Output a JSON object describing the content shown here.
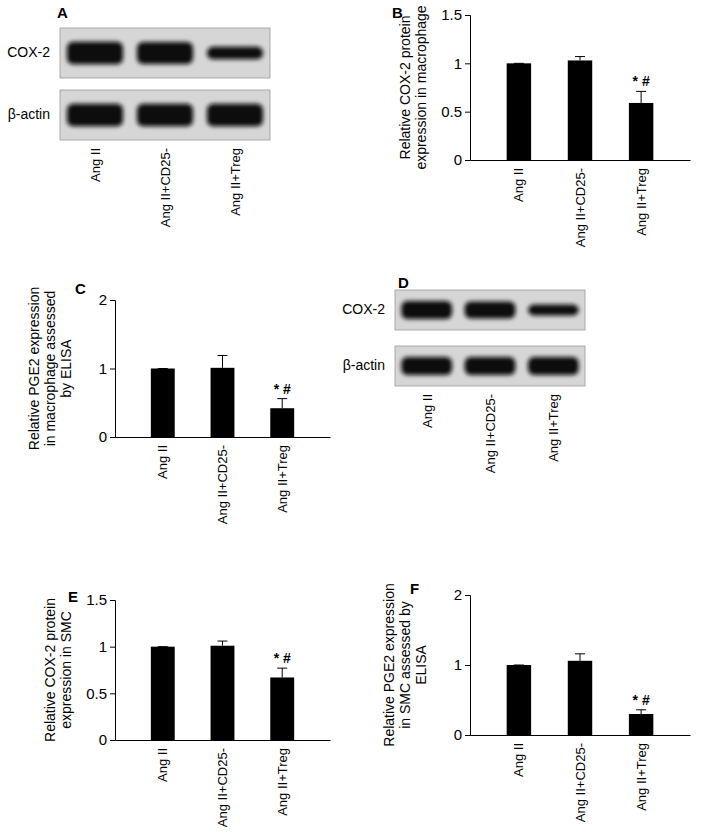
{
  "chart_data": [
    {
      "type": "blot",
      "title": "A",
      "rows": [
        "COX-2",
        "β-actin"
      ],
      "categories": [
        "Ang II",
        "Ang II+CD25-",
        "Ang II+Treg"
      ],
      "intensity": [
        [
          1,
          0.97,
          0.55
        ],
        [
          1,
          1,
          1
        ]
      ]
    },
    {
      "type": "bar",
      "title": "B",
      "ylabel": "Relative COX-2 protein expression in macrophage",
      "categories": [
        "Ang II",
        "Ang II+CD25-",
        "Ang II+Treg"
      ],
      "values": [
        1,
        1.03,
        0.59
      ],
      "errors": [
        0,
        0.04,
        0.12
      ],
      "color": "#000000",
      "ylim": [
        0,
        1.5
      ],
      "yticks": [
        0,
        0.5,
        1,
        1.5
      ],
      "annotations": [
        {
          "index": 2,
          "text": "* #"
        }
      ]
    },
    {
      "type": "bar",
      "title": "C",
      "ylabel": "Relative PGE2 expression in macrophage assessed by ELISA",
      "categories": [
        "Ang II",
        "Ang II+CD25-",
        "Ang II+Treg"
      ],
      "values": [
        1,
        1.01,
        0.42
      ],
      "errors": [
        0,
        0.18,
        0.14
      ],
      "color": "#000000",
      "ylim": [
        0,
        2
      ],
      "yticks": [
        0,
        1,
        2
      ],
      "annotations": [
        {
          "index": 2,
          "text": "* #"
        }
      ]
    },
    {
      "type": "blot",
      "title": "D",
      "rows": [
        "COX-2",
        "β-actin"
      ],
      "categories": [
        "Ang II",
        "Ang II+CD25-",
        "Ang II+Treg"
      ],
      "intensity": [
        [
          1,
          0.95,
          0.6
        ],
        [
          1,
          1,
          1
        ]
      ]
    },
    {
      "type": "bar",
      "title": "E",
      "ylabel": "Relative COX-2 protein expression in SMC",
      "categories": [
        "Ang II",
        "Ang II+CD25-",
        "Ang II+Treg"
      ],
      "values": [
        1,
        1.01,
        0.67
      ],
      "errors": [
        0,
        0.05,
        0.1
      ],
      "color": "#000000",
      "ylim": [
        0,
        1.5
      ],
      "yticks": [
        0,
        0.5,
        1,
        1.5
      ],
      "annotations": [
        {
          "index": 2,
          "text": "* #"
        }
      ]
    },
    {
      "type": "bar",
      "title": "F",
      "ylabel": "Relative PGE2 expression in SMC assessed by ELISA",
      "categories": [
        "Ang II",
        "Ang II+CD25-",
        "Ang II+Treg"
      ],
      "values": [
        1,
        1.06,
        0.3
      ],
      "errors": [
        0,
        0.1,
        0.06
      ],
      "color": "#000000",
      "ylim": [
        0,
        2
      ],
      "yticks": [
        0,
        1,
        2
      ],
      "annotations": [
        {
          "index": 2,
          "text": "* #"
        }
      ]
    }
  ]
}
